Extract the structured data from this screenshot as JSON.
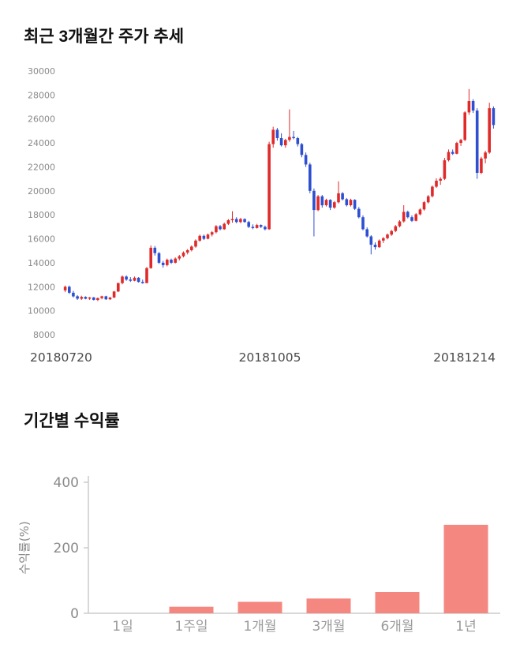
{
  "page": {
    "background": "#ffffff"
  },
  "chart_data": [
    {
      "type": "candlestick",
      "title": "최근 3개월간 주가 추세",
      "ylim": [
        8000,
        30000
      ],
      "yticks": [
        8000,
        10000,
        12000,
        14000,
        16000,
        18000,
        20000,
        22000,
        24000,
        26000,
        28000,
        30000
      ],
      "xtick_labels": [
        "20180720",
        "20181005",
        "20181214"
      ],
      "up_color": "#e02a2a",
      "down_color": "#2e4fd0",
      "grid": false,
      "candles": [
        [
          11700,
          12100,
          11550,
          12000
        ],
        [
          12000,
          12100,
          11400,
          11500
        ],
        [
          11500,
          11650,
          11100,
          11200
        ],
        [
          11200,
          11300,
          10900,
          11000
        ],
        [
          11000,
          11250,
          10900,
          11150
        ],
        [
          11150,
          11200,
          10950,
          11000
        ],
        [
          11000,
          11150,
          10900,
          11100
        ],
        [
          11100,
          11150,
          10850,
          10900
        ],
        [
          10900,
          11100,
          10800,
          11050
        ],
        [
          11050,
          11250,
          10950,
          11200
        ],
        [
          11200,
          11250,
          10900,
          10950
        ],
        [
          10950,
          11150,
          10900,
          11100
        ],
        [
          11100,
          11650,
          11050,
          11600
        ],
        [
          11600,
          12350,
          11550,
          12300
        ],
        [
          12300,
          12950,
          12200,
          12850
        ],
        [
          12850,
          12950,
          12500,
          12600
        ],
        [
          12600,
          12800,
          12400,
          12500
        ],
        [
          12500,
          12850,
          12450,
          12750
        ],
        [
          12750,
          12800,
          12350,
          12400
        ],
        [
          12400,
          12600,
          12250,
          12300
        ],
        [
          12300,
          13650,
          12300,
          13550
        ],
        [
          13550,
          15450,
          13500,
          15250
        ],
        [
          15250,
          15400,
          14600,
          14800
        ],
        [
          14800,
          14900,
          13900,
          14000
        ],
        [
          14000,
          14150,
          13600,
          13800
        ],
        [
          13800,
          14350,
          13700,
          14250
        ],
        [
          14250,
          14350,
          13900,
          14000
        ],
        [
          14000,
          14450,
          13950,
          14350
        ],
        [
          14350,
          14650,
          14200,
          14550
        ],
        [
          14550,
          14950,
          14450,
          14850
        ],
        [
          14850,
          15150,
          14700,
          15050
        ],
        [
          15050,
          15450,
          14950,
          15350
        ],
        [
          15350,
          15950,
          15250,
          15850
        ],
        [
          15850,
          16350,
          15750,
          16250
        ],
        [
          16250,
          16350,
          15900,
          16000
        ],
        [
          16000,
          16450,
          15950,
          16350
        ],
        [
          16350,
          16650,
          16200,
          16550
        ],
        [
          16550,
          17150,
          16450,
          17050
        ],
        [
          17050,
          17150,
          16700,
          16800
        ],
        [
          16800,
          17350,
          16750,
          17250
        ],
        [
          17250,
          17650,
          17150,
          17550
        ],
        [
          17550,
          18300,
          17350,
          17650
        ],
        [
          17650,
          17800,
          17300,
          17400
        ],
        [
          17400,
          17750,
          17300,
          17650
        ],
        [
          17650,
          17700,
          17350,
          17400
        ],
        [
          17400,
          17500,
          16900,
          17000
        ],
        [
          17000,
          17200,
          16800,
          16900
        ],
        [
          16900,
          17250,
          16850,
          17150
        ],
        [
          17150,
          17200,
          16900,
          17000
        ],
        [
          17000,
          17100,
          16700,
          16800
        ],
        [
          16800,
          24100,
          16750,
          23900
        ],
        [
          23900,
          25350,
          23600,
          25100
        ],
        [
          25100,
          25250,
          24200,
          24400
        ],
        [
          24400,
          24800,
          23700,
          23800
        ],
        [
          23800,
          24350,
          23600,
          24250
        ],
        [
          24250,
          26800,
          24100,
          24500
        ],
        [
          24500,
          25000,
          24300,
          24400
        ],
        [
          24400,
          24500,
          23700,
          23900
        ],
        [
          23900,
          24000,
          22800,
          23000
        ],
        [
          23000,
          23200,
          22000,
          22200
        ],
        [
          22200,
          22350,
          19800,
          20000
        ],
        [
          20000,
          20200,
          16200,
          18400
        ],
        [
          18400,
          19650,
          18300,
          19550
        ],
        [
          19550,
          19650,
          18600,
          18800
        ],
        [
          18800,
          19350,
          18700,
          19250
        ],
        [
          19250,
          19300,
          18400,
          18600
        ],
        [
          18600,
          19150,
          18500,
          19050
        ],
        [
          19050,
          20800,
          18950,
          19800
        ],
        [
          19800,
          19900,
          19200,
          19300
        ],
        [
          19300,
          19400,
          18700,
          18800
        ],
        [
          18800,
          19350,
          18700,
          19250
        ],
        [
          19250,
          19300,
          18400,
          18500
        ],
        [
          18500,
          18650,
          17700,
          17800
        ],
        [
          17800,
          17950,
          16700,
          16800
        ],
        [
          16800,
          16950,
          16100,
          16200
        ],
        [
          16200,
          16300,
          14700,
          15500
        ],
        [
          15500,
          15700,
          15100,
          15300
        ],
        [
          15300,
          15950,
          15250,
          15850
        ],
        [
          15850,
          16150,
          15650,
          16050
        ],
        [
          16050,
          16450,
          15950,
          16350
        ],
        [
          16350,
          16750,
          16250,
          16650
        ],
        [
          16650,
          17150,
          16550,
          17050
        ],
        [
          17050,
          17550,
          16950,
          17450
        ],
        [
          17450,
          18800,
          17350,
          18250
        ],
        [
          18250,
          18350,
          17700,
          17800
        ],
        [
          17800,
          17950,
          17400,
          17500
        ],
        [
          17500,
          18150,
          17450,
          18050
        ],
        [
          18050,
          18550,
          17950,
          18450
        ],
        [
          18450,
          19150,
          18350,
          19050
        ],
        [
          19050,
          19650,
          18950,
          19550
        ],
        [
          19550,
          20450,
          19450,
          20350
        ],
        [
          20350,
          21050,
          20250,
          20850
        ],
        [
          20850,
          21150,
          20500,
          21000
        ],
        [
          21000,
          22750,
          20900,
          22550
        ],
        [
          22550,
          23450,
          22450,
          23250
        ],
        [
          23250,
          23450,
          23000,
          23100
        ],
        [
          23100,
          24100,
          23050,
          24000
        ],
        [
          24000,
          24350,
          23750,
          24250
        ],
        [
          24250,
          26650,
          24150,
          26550
        ],
        [
          26550,
          28500,
          26350,
          27500
        ],
        [
          27500,
          27650,
          26500,
          26700
        ],
        [
          26700,
          26900,
          21000,
          21500
        ],
        [
          21500,
          22850,
          21400,
          22700
        ],
        [
          22700,
          23350,
          22300,
          23200
        ],
        [
          23200,
          27350,
          23100,
          26900
        ],
        [
          26900,
          27050,
          25200,
          25500
        ]
      ]
    },
    {
      "type": "bar",
      "title": "기간별 수익률",
      "categories": [
        "1일",
        "1주일",
        "1개월",
        "3개월",
        "6개월",
        "1년"
      ],
      "values": [
        0,
        20,
        35,
        45,
        65,
        270
      ],
      "ylabel": "수익률(%)",
      "ylim": [
        0,
        400
      ],
      "yticks": [
        0,
        200,
        400
      ],
      "bar_color": "#f4877f",
      "axis_color": "#cccccc",
      "legend": false,
      "grid": false
    }
  ]
}
